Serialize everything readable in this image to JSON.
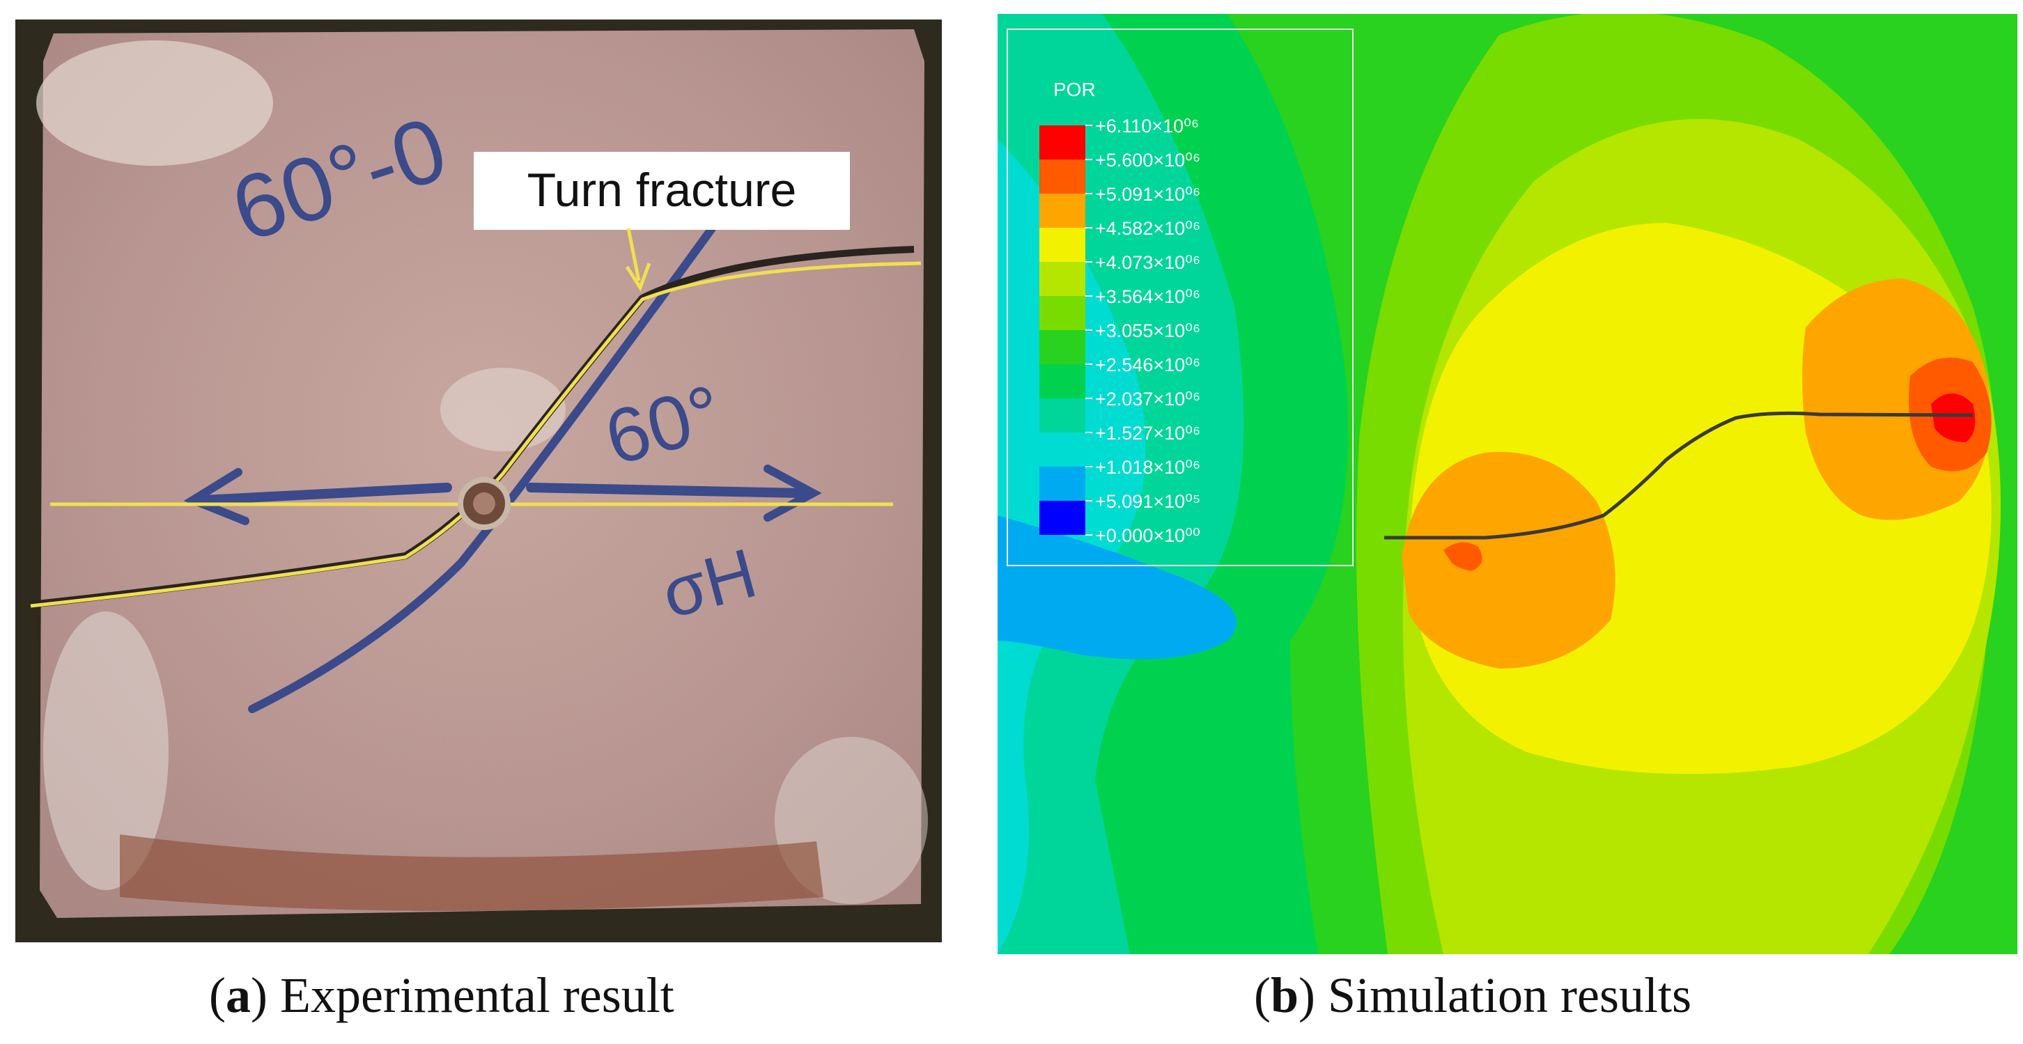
{
  "figure": {
    "panel_a": {
      "caption_letter": "a",
      "caption_text": "Experimental result",
      "annotation": "Turn fracture",
      "handwriting": [
        "60°-0",
        "60°",
        "σH"
      ]
    },
    "panel_b": {
      "caption_letter": "b",
      "caption_text": "Simulation results",
      "legend": {
        "title": "POR",
        "entries": [
          {
            "label": "+6.110×10⁰⁶",
            "color": "#ff0000"
          },
          {
            "label": "+5.600×10⁰⁶",
            "color": "#ff5a00"
          },
          {
            "label": "+5.091×10⁰⁶",
            "color": "#ffa500"
          },
          {
            "label": "+4.582×10⁰⁶",
            "color": "#f2f200"
          },
          {
            "label": "+4.073×10⁰⁶",
            "color": "#b4e600"
          },
          {
            "label": "+3.564×10⁰⁶",
            "color": "#78dc00"
          },
          {
            "label": "+3.055×10⁰⁶",
            "color": "#28d21e"
          },
          {
            "label": "+2.546×10⁰⁶",
            "color": "#00d250"
          },
          {
            "label": "+2.037×10⁰⁶",
            "color": "#00d69a"
          },
          {
            "label": "+1.527×10⁰⁶",
            "color": "#00dcd2"
          },
          {
            "label": "+1.018×10⁰⁶",
            "color": "#00aaf0"
          },
          {
            "label": "+5.091×10⁰⁵",
            "color": "#2864ff"
          },
          {
            "label": "+0.000×10⁰⁰",
            "color": "#0000ff"
          }
        ]
      }
    }
  }
}
